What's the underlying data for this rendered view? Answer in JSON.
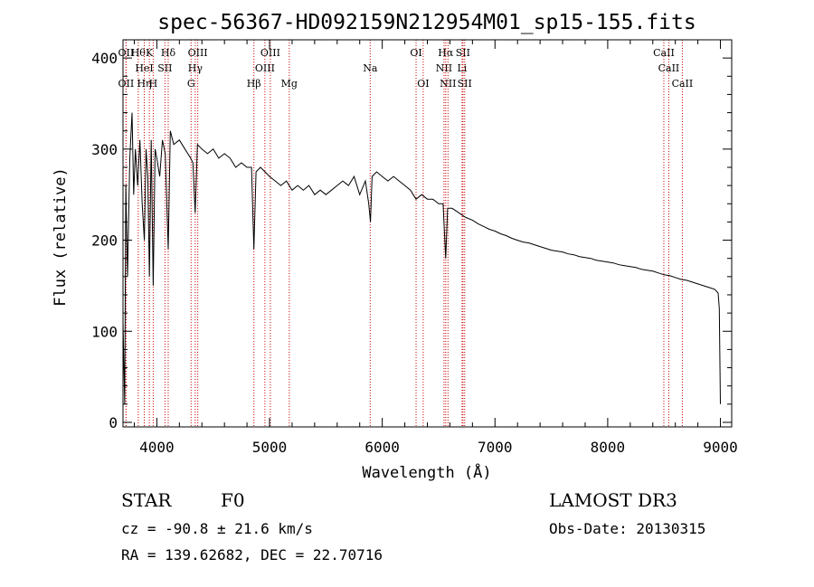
{
  "chart_data": {
    "type": "line",
    "title": "spec-56367-HD092159N212954M01_sp15-155.fits",
    "xlabel": "Wavelength (Å)",
    "ylabel": "Flux (relative)",
    "xlim": [
      3700,
      9100
    ],
    "ylim": [
      -5,
      420
    ],
    "xticks": [
      4000,
      5000,
      6000,
      7000,
      8000,
      9000
    ],
    "yticks": [
      0,
      100,
      200,
      300,
      400
    ],
    "series": [
      {
        "name": "spectrum",
        "points": [
          [
            3700,
            110
          ],
          [
            3715,
            20
          ],
          [
            3725,
            260
          ],
          [
            3740,
            160
          ],
          [
            3760,
            290
          ],
          [
            3780,
            340
          ],
          [
            3795,
            250
          ],
          [
            3810,
            300
          ],
          [
            3830,
            260
          ],
          [
            3850,
            310
          ],
          [
            3870,
            240
          ],
          [
            3889,
            200
          ],
          [
            3905,
            300
          ],
          [
            3920,
            270
          ],
          [
            3934,
            160
          ],
          [
            3950,
            310
          ],
          [
            3968,
            150
          ],
          [
            3985,
            300
          ],
          [
            4000,
            290
          ],
          [
            4026,
            270
          ],
          [
            4050,
            310
          ],
          [
            4075,
            295
          ],
          [
            4101,
            190
          ],
          [
            4120,
            320
          ],
          [
            4150,
            305
          ],
          [
            4200,
            310
          ],
          [
            4250,
            300
          ],
          [
            4300,
            290
          ],
          [
            4320,
            285
          ],
          [
            4340,
            230
          ],
          [
            4360,
            305
          ],
          [
            4400,
            300
          ],
          [
            4450,
            295
          ],
          [
            4500,
            300
          ],
          [
            4550,
            290
          ],
          [
            4600,
            295
          ],
          [
            4650,
            290
          ],
          [
            4700,
            280
          ],
          [
            4750,
            285
          ],
          [
            4800,
            280
          ],
          [
            4840,
            280
          ],
          [
            4861,
            190
          ],
          [
            4880,
            275
          ],
          [
            4920,
            280
          ],
          [
            4960,
            275
          ],
          [
            5000,
            270
          ],
          [
            5050,
            265
          ],
          [
            5100,
            260
          ],
          [
            5150,
            265
          ],
          [
            5200,
            255
          ],
          [
            5250,
            260
          ],
          [
            5300,
            255
          ],
          [
            5350,
            260
          ],
          [
            5400,
            250
          ],
          [
            5450,
            255
          ],
          [
            5500,
            250
          ],
          [
            5550,
            255
          ],
          [
            5600,
            260
          ],
          [
            5650,
            265
          ],
          [
            5700,
            260
          ],
          [
            5750,
            270
          ],
          [
            5800,
            250
          ],
          [
            5850,
            265
          ],
          [
            5880,
            240
          ],
          [
            5895,
            220
          ],
          [
            5910,
            270
          ],
          [
            5950,
            275
          ],
          [
            6000,
            270
          ],
          [
            6050,
            265
          ],
          [
            6100,
            270
          ],
          [
            6150,
            265
          ],
          [
            6200,
            260
          ],
          [
            6250,
            255
          ],
          [
            6300,
            245
          ],
          [
            6350,
            250
          ],
          [
            6400,
            245
          ],
          [
            6450,
            245
          ],
          [
            6500,
            240
          ],
          [
            6540,
            240
          ],
          [
            6563,
            180
          ],
          [
            6580,
            235
          ],
          [
            6620,
            235
          ],
          [
            6680,
            230
          ],
          [
            6740,
            225
          ],
          [
            6800,
            222
          ],
          [
            6850,
            218
          ],
          [
            6900,
            215
          ],
          [
            6950,
            212
          ],
          [
            7000,
            210
          ],
          [
            7050,
            207
          ],
          [
            7100,
            205
          ],
          [
            7150,
            202
          ],
          [
            7200,
            200
          ],
          [
            7250,
            198
          ],
          [
            7300,
            197
          ],
          [
            7350,
            195
          ],
          [
            7400,
            193
          ],
          [
            7450,
            191
          ],
          [
            7500,
            189
          ],
          [
            7550,
            188
          ],
          [
            7600,
            187
          ],
          [
            7650,
            185
          ],
          [
            7700,
            184
          ],
          [
            7750,
            182
          ],
          [
            7800,
            181
          ],
          [
            7850,
            180
          ],
          [
            7900,
            178
          ],
          [
            7950,
            177
          ],
          [
            8000,
            176
          ],
          [
            8050,
            175
          ],
          [
            8100,
            173
          ],
          [
            8150,
            172
          ],
          [
            8200,
            171
          ],
          [
            8250,
            170
          ],
          [
            8300,
            168
          ],
          [
            8350,
            167
          ],
          [
            8400,
            166
          ],
          [
            8450,
            164
          ],
          [
            8500,
            162
          ],
          [
            8550,
            161
          ],
          [
            8600,
            159
          ],
          [
            8650,
            157
          ],
          [
            8700,
            156
          ],
          [
            8750,
            154
          ],
          [
            8800,
            152
          ],
          [
            8850,
            150
          ],
          [
            8900,
            148
          ],
          [
            8950,
            146
          ],
          [
            8980,
            142
          ],
          [
            8990,
            125
          ],
          [
            9000,
            20
          ]
        ]
      }
    ],
    "annotations": [
      {
        "wavelength": 3727,
        "label": "OII",
        "row": 1
      },
      {
        "wavelength": 3727,
        "label": "OII",
        "row": 3
      },
      {
        "wavelength": 3835,
        "label": "Hθ",
        "row": 1
      },
      {
        "wavelength": 3889,
        "label": "HeI",
        "row": 2
      },
      {
        "wavelength": 3889,
        "label": "Hη",
        "row": 3
      },
      {
        "wavelength": 3934,
        "label": "K",
        "row": 1
      },
      {
        "wavelength": 3968,
        "label": "H",
        "row": 3
      },
      {
        "wavelength": 4072,
        "label": "SII",
        "row": 2
      },
      {
        "wavelength": 4101,
        "label": "Hδ",
        "row": 1
      },
      {
        "wavelength": 4304,
        "label": "G",
        "row": 3
      },
      {
        "wavelength": 4341,
        "label": "Hγ",
        "row": 2
      },
      {
        "wavelength": 4363,
        "label": "OIII",
        "row": 1
      },
      {
        "wavelength": 4861,
        "label": "Hβ",
        "row": 3
      },
      {
        "wavelength": 4959,
        "label": "OIII",
        "row": 2
      },
      {
        "wavelength": 5007,
        "label": "OIII",
        "row": 1
      },
      {
        "wavelength": 5175,
        "label": "Mg",
        "row": 3
      },
      {
        "wavelength": 5893,
        "label": "Na",
        "row": 2
      },
      {
        "wavelength": 6300,
        "label": "OI",
        "row": 1
      },
      {
        "wavelength": 6363,
        "label": "OI",
        "row": 3
      },
      {
        "wavelength": 6548,
        "label": "NII",
        "row": 2
      },
      {
        "wavelength": 6563,
        "label": "Hα",
        "row": 1
      },
      {
        "wavelength": 6583,
        "label": "NII",
        "row": 3
      },
      {
        "wavelength": 6708,
        "label": "Li",
        "row": 2
      },
      {
        "wavelength": 6716,
        "label": "SII",
        "row": 1
      },
      {
        "wavelength": 6731,
        "label": "SII",
        "row": 3
      },
      {
        "wavelength": 8498,
        "label": "CaII",
        "row": 1
      },
      {
        "wavelength": 8542,
        "label": "CaII",
        "row": 2
      },
      {
        "wavelength": 8662,
        "label": "CaII",
        "row": 3
      }
    ],
    "annotation_color": "#cc0000",
    "line_color": "#000000"
  },
  "info": {
    "object_class": "STAR",
    "subclass": "F0",
    "survey": "LAMOST DR3",
    "redshift_line": "cz = -90.8 ± 21.6 km/s",
    "obs_date_line": "Obs-Date: 20130315",
    "coords_line": "RA = 139.62682, DEC =  22.70716"
  }
}
